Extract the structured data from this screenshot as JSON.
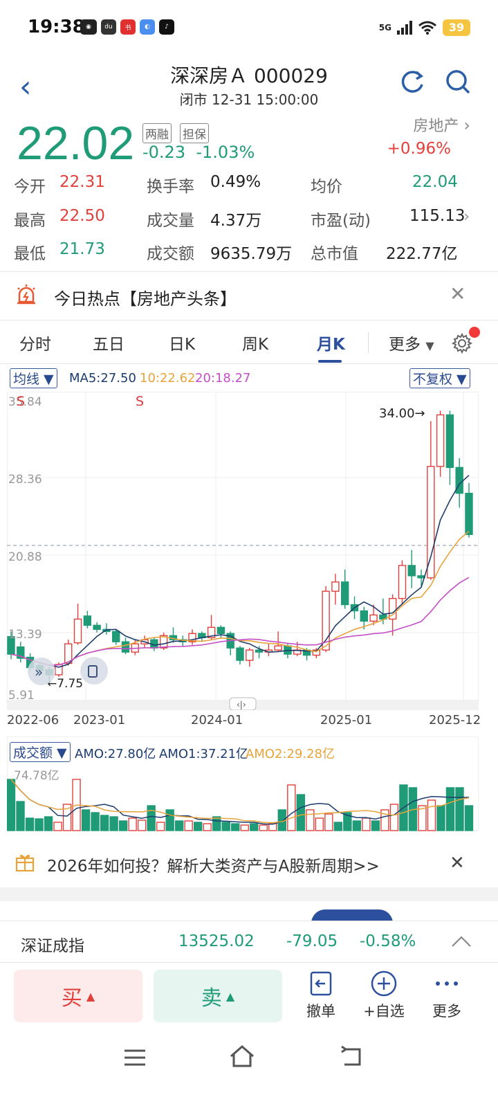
{
  "status": {
    "time": "19:38",
    "battery": "39",
    "network": "5G"
  },
  "header": {
    "title": "深深房Ａ 000029",
    "subtitle": "闭市 12-31 15:00:00"
  },
  "price": {
    "last": "22.02",
    "change": "-0.23",
    "change_pct": "-1.03%",
    "badges": [
      "两融",
      "担保"
    ],
    "sector": "房地产",
    "sector_change": "+0.96%"
  },
  "quote": {
    "open_label": "今开",
    "open": "22.31",
    "high_label": "最高",
    "high": "22.50",
    "low_label": "最低",
    "low": "21.73",
    "turnover_label": "换手率",
    "turnover": "0.49%",
    "volume_label": "成交量",
    "volume": "4.37万",
    "amount_label": "成交额",
    "amount": "9635.79万",
    "avg_label": "均价",
    "avg": "22.04",
    "pe_label": "市盈(动)",
    "pe": "115.13",
    "mcap_label": "总市值",
    "mcap": "222.77亿"
  },
  "hot": {
    "text": "今日热点【房地产头条】"
  },
  "tabs": [
    "分时",
    "五日",
    "日K",
    "周K",
    "月K",
    "更多"
  ],
  "chart": {
    "ma_select": "均线 ▼",
    "ma5": "MA5:27.50",
    "ma10": "10:22.62",
    "ma20": "20:18.27",
    "adjust": "不复权 ▼",
    "y_labels": [
      "35.84",
      "28.36",
      "20.88",
      "13.39",
      "5.91"
    ],
    "x_labels": [
      "2022-06",
      "2023-01",
      "2024-01",
      "2025-01",
      "2025-12"
    ],
    "max_label": "34.00→",
    "min_label": "←7.75",
    "s_marks": [
      "S",
      "S"
    ],
    "colors": {
      "up": "#e2403a",
      "down": "#1f9b77",
      "ma5": "#1d3c6e",
      "ma10": "#e8a33a",
      "ma20": "#c44fc7"
    }
  },
  "volume": {
    "select": "成交额 ▼",
    "amo": "AMO:27.80亿",
    "amo1": "AMO1:37.21亿",
    "amo2": "AMO2:29.28亿",
    "max": "74.78亿"
  },
  "ad": {
    "text": "2026年如何投？解析大类资产与A股新周期>>"
  },
  "index": {
    "name": "深证成指",
    "value": "13525.02",
    "change": "-79.05",
    "pct": "-0.58%"
  },
  "trade": {
    "buy": "买",
    "sell": "卖",
    "cancel": "撤单",
    "watch": "+自选",
    "more": "更多"
  }
}
